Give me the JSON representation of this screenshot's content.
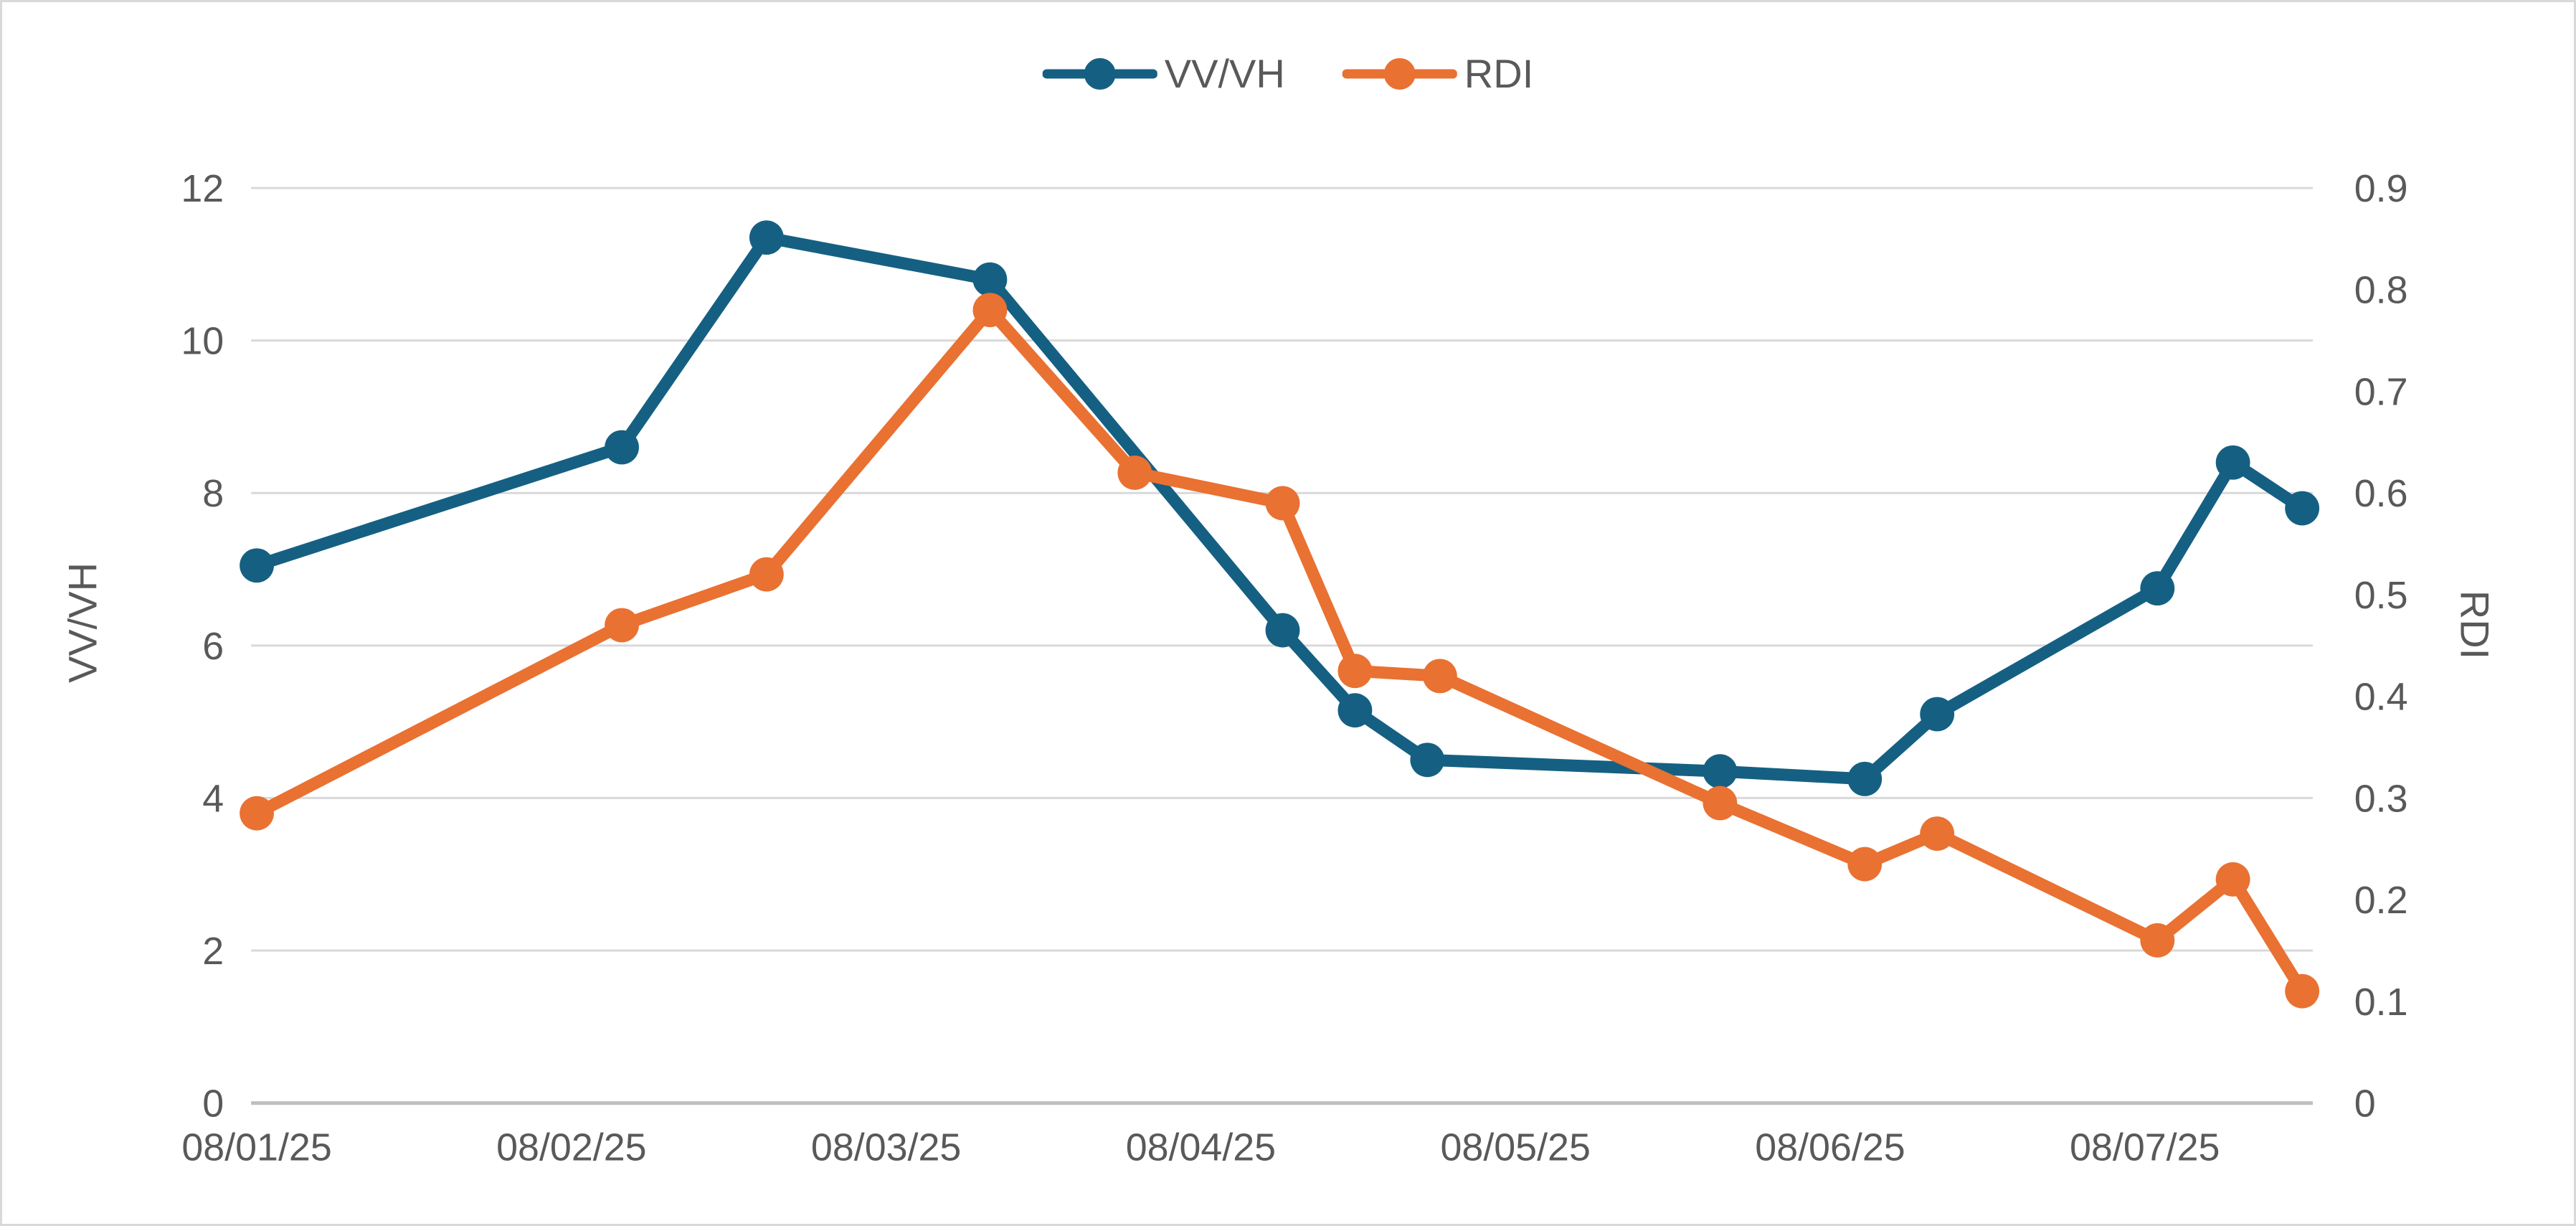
{
  "colors": {
    "vvvh_series": "#156082",
    "rdi_series": "#E97132",
    "gridline": "#D9D9D9",
    "axis_line": "#BFBFBF",
    "tick_text": "#595959",
    "border": "#D9D9D9",
    "background": "#FFFFFF"
  },
  "legend": {
    "marker_icon": "line-with-circle-marker"
  },
  "chart_data": {
    "type": "line",
    "grid": "horizontal-only",
    "legend_position": "top-center",
    "x_axis": {
      "tick_labels": [
        "08/01/25",
        "08/02/25",
        "08/03/25",
        "08/04/25",
        "08/05/25",
        "08/06/25",
        "08/07/25"
      ],
      "tick_days": [
        1,
        2,
        3,
        4,
        5,
        6,
        7
      ]
    },
    "y_left": {
      "label": "VV/VH",
      "tick_labels": [
        "0",
        "2",
        "4",
        "6",
        "8",
        "10",
        "12"
      ],
      "tick_values": [
        0,
        2,
        4,
        6,
        8,
        10,
        12
      ],
      "range": [
        0,
        12
      ]
    },
    "y_right": {
      "label": "RDI",
      "tick_labels": [
        "0",
        "0.1",
        "0.2",
        "0.3",
        "0.4",
        "0.5",
        "0.6",
        "0.7",
        "0.8",
        "0.9"
      ],
      "tick_values": [
        0,
        0.1,
        0.2,
        0.3,
        0.4,
        0.5,
        0.6,
        0.7,
        0.8,
        0.9
      ],
      "range": [
        0,
        0.9
      ]
    },
    "series": [
      {
        "name": "VV/VH",
        "axis": "left",
        "color": "#156082",
        "marker": "circle",
        "points": [
          {
            "day": 1.0,
            "value": 7.05
          },
          {
            "day": 2.16,
            "value": 8.6
          },
          {
            "day": 2.62,
            "value": 11.35
          },
          {
            "day": 3.33,
            "value": 10.8
          },
          {
            "day": 4.26,
            "value": 6.2
          },
          {
            "day": 4.49,
            "value": 5.15
          },
          {
            "day": 4.72,
            "value": 4.5
          },
          {
            "day": 5.65,
            "value": 4.35
          },
          {
            "day": 6.11,
            "value": 4.25
          },
          {
            "day": 6.34,
            "value": 5.1
          },
          {
            "day": 7.04,
            "value": 6.75
          },
          {
            "day": 7.28,
            "value": 8.4
          },
          {
            "day": 7.5,
            "value": 7.8
          }
        ]
      },
      {
        "name": "RDI",
        "axis": "right",
        "color": "#E97132",
        "marker": "circle",
        "points": [
          {
            "day": 1.0,
            "value": 0.285
          },
          {
            "day": 2.16,
            "value": 0.47
          },
          {
            "day": 2.62,
            "value": 0.52
          },
          {
            "day": 3.33,
            "value": 0.78
          },
          {
            "day": 3.79,
            "value": 0.62
          },
          {
            "day": 4.26,
            "value": 0.59
          },
          {
            "day": 4.49,
            "value": 0.425
          },
          {
            "day": 4.76,
            "value": 0.42
          },
          {
            "day": 5.65,
            "value": 0.295
          },
          {
            "day": 6.11,
            "value": 0.235
          },
          {
            "day": 6.34,
            "value": 0.265
          },
          {
            "day": 7.04,
            "value": 0.16
          },
          {
            "day": 7.28,
            "value": 0.22
          },
          {
            "day": 7.5,
            "value": 0.11
          }
        ]
      }
    ]
  }
}
